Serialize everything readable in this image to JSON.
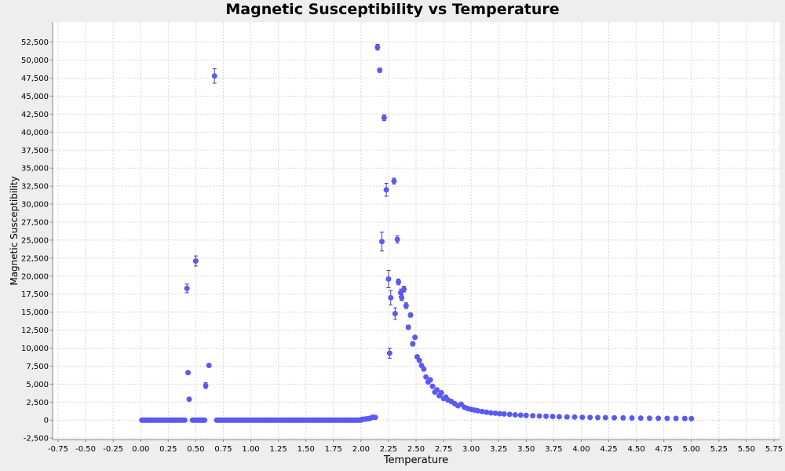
{
  "chart_data": {
    "type": "scatter",
    "title": "Magnetic Susceptibility vs Temperature",
    "xlabel": "Temperature",
    "ylabel": "Magnetic Susceptibility",
    "xlim": [
      -0.8,
      5.8
    ],
    "ylim": [
      -2700,
      55300
    ],
    "x_ticks": [
      -0.75,
      -0.5,
      -0.25,
      0,
      0.25,
      0.5,
      0.75,
      1,
      1.25,
      1.5,
      1.75,
      2,
      2.25,
      2.5,
      2.75,
      3,
      3.25,
      3.5,
      3.75,
      4,
      4.25,
      4.5,
      4.75,
      5,
      5.25,
      5.5,
      5.75
    ],
    "x_tick_labels": [
      "-0.75",
      "-0.50",
      "-0.25",
      "0.00",
      "0.25",
      "0.50",
      "0.75",
      "1.00",
      "1.25",
      "1.50",
      "1.75",
      "2.00",
      "2.25",
      "2.50",
      "2.75",
      "3.00",
      "3.25",
      "3.50",
      "3.75",
      "4.00",
      "4.25",
      "4.50",
      "4.75",
      "5.00",
      "5.25",
      "5.50",
      "5.75"
    ],
    "y_ticks": [
      -2500,
      0,
      2500,
      5000,
      7500,
      10000,
      12500,
      15000,
      17500,
      20000,
      22500,
      25000,
      27500,
      30000,
      32500,
      35000,
      37500,
      40000,
      42500,
      45000,
      47500,
      50000,
      52500
    ],
    "y_tick_labels": [
      "-2,500",
      "0",
      "2,500",
      "5,000",
      "7,500",
      "10,000",
      "12,500",
      "15,000",
      "17,500",
      "20,000",
      "22,500",
      "25,000",
      "27,500",
      "30,000",
      "32,500",
      "35,000",
      "37,500",
      "40,000",
      "42,500",
      "45,000",
      "47,500",
      "50,000",
      "52,500"
    ],
    "grid": true,
    "legend": "none",
    "colors": {
      "marker": "#5a5af2",
      "error_bar": "#4040a0",
      "plot_bg": "#ffffff",
      "page_bg": "#eeeeee",
      "grid": "#d8d8d8"
    },
    "series": [
      {
        "marker": "circle",
        "points": [
          {
            "x": 0.42,
            "y": 18300,
            "err": 600
          },
          {
            "x": 0.43,
            "y": 6600,
            "err": 200
          },
          {
            "x": 0.44,
            "y": 2900,
            "err": 100
          },
          {
            "x": 0.5,
            "y": 22100,
            "err": 700
          },
          {
            "x": 0.59,
            "y": 4800,
            "err": 400
          },
          {
            "x": 0.62,
            "y": 7600,
            "err": 150
          },
          {
            "x": 0.67,
            "y": 47800,
            "err": 1000
          },
          {
            "x": 2.01,
            "y": 120,
            "err": 0
          },
          {
            "x": 2.03,
            "y": 140,
            "err": 0
          },
          {
            "x": 2.05,
            "y": 180,
            "err": 0
          },
          {
            "x": 2.07,
            "y": 220,
            "err": 0
          },
          {
            "x": 2.09,
            "y": 300,
            "err": 0
          },
          {
            "x": 2.11,
            "y": 420,
            "err": 0
          },
          {
            "x": 2.13,
            "y": 380,
            "err": 0
          },
          {
            "x": 2.15,
            "y": 51800,
            "err": 400
          },
          {
            "x": 2.17,
            "y": 48600,
            "err": 300
          },
          {
            "x": 2.19,
            "y": 24800,
            "err": 1300
          },
          {
            "x": 2.21,
            "y": 42000,
            "err": 400
          },
          {
            "x": 2.23,
            "y": 32000,
            "err": 900
          },
          {
            "x": 2.25,
            "y": 19600,
            "err": 1200
          },
          {
            "x": 2.26,
            "y": 9300,
            "err": 700
          },
          {
            "x": 2.27,
            "y": 17000,
            "err": 1000
          },
          {
            "x": 2.3,
            "y": 33200,
            "err": 400
          },
          {
            "x": 2.31,
            "y": 14800,
            "err": 800
          },
          {
            "x": 2.33,
            "y": 25100,
            "err": 500
          },
          {
            "x": 2.34,
            "y": 19200,
            "err": 400
          },
          {
            "x": 2.36,
            "y": 17700,
            "err": 500
          },
          {
            "x": 2.37,
            "y": 17000,
            "err": 400
          },
          {
            "x": 2.39,
            "y": 18200,
            "err": 400
          },
          {
            "x": 2.41,
            "y": 15900,
            "err": 400
          },
          {
            "x": 2.43,
            "y": 12900,
            "err": 300
          },
          {
            "x": 2.45,
            "y": 14600,
            "err": 300
          },
          {
            "x": 2.47,
            "y": 10600,
            "err": 300
          },
          {
            "x": 2.49,
            "y": 11500,
            "err": 200
          },
          {
            "x": 2.51,
            "y": 8800,
            "err": 200
          },
          {
            "x": 2.53,
            "y": 8300,
            "err": 200
          },
          {
            "x": 2.55,
            "y": 7600,
            "err": 150
          },
          {
            "x": 2.57,
            "y": 7100,
            "err": 150
          },
          {
            "x": 2.59,
            "y": 6000,
            "err": 150
          },
          {
            "x": 2.61,
            "y": 5300,
            "err": 100
          },
          {
            "x": 2.63,
            "y": 5600,
            "err": 100
          },
          {
            "x": 2.65,
            "y": 4700,
            "err": 100
          },
          {
            "x": 2.67,
            "y": 3900,
            "err": 100
          },
          {
            "x": 2.69,
            "y": 4200,
            "err": 100
          },
          {
            "x": 2.71,
            "y": 3400,
            "err": 100
          },
          {
            "x": 2.73,
            "y": 3800,
            "err": 100
          },
          {
            "x": 2.75,
            "y": 3000,
            "err": 80
          },
          {
            "x": 2.77,
            "y": 3200,
            "err": 80
          },
          {
            "x": 2.79,
            "y": 2800,
            "err": 60
          },
          {
            "x": 2.82,
            "y": 2600,
            "err": 60
          },
          {
            "x": 2.85,
            "y": 2300,
            "err": 60
          },
          {
            "x": 2.88,
            "y": 2000,
            "err": 50
          },
          {
            "x": 2.91,
            "y": 2200,
            "err": 50
          },
          {
            "x": 2.94,
            "y": 1800,
            "err": 50
          },
          {
            "x": 2.97,
            "y": 1600,
            "err": 40
          },
          {
            "x": 3.0,
            "y": 1500,
            "err": 40
          },
          {
            "x": 3.03,
            "y": 1400,
            "err": 40
          },
          {
            "x": 3.06,
            "y": 1300,
            "err": 30
          },
          {
            "x": 3.1,
            "y": 1200,
            "err": 30
          },
          {
            "x": 3.14,
            "y": 1100,
            "err": 30
          },
          {
            "x": 3.18,
            "y": 1000,
            "err": 30
          },
          {
            "x": 3.22,
            "y": 960,
            "err": 20
          },
          {
            "x": 3.26,
            "y": 900,
            "err": 20
          },
          {
            "x": 3.3,
            "y": 860,
            "err": 20
          },
          {
            "x": 3.35,
            "y": 800,
            "err": 20
          },
          {
            "x": 3.4,
            "y": 740,
            "err": 20
          },
          {
            "x": 3.45,
            "y": 700,
            "err": 20
          },
          {
            "x": 3.5,
            "y": 650,
            "err": 20
          },
          {
            "x": 3.56,
            "y": 610,
            "err": 20
          },
          {
            "x": 3.62,
            "y": 570,
            "err": 20
          },
          {
            "x": 3.68,
            "y": 540,
            "err": 20
          },
          {
            "x": 3.74,
            "y": 510,
            "err": 20
          },
          {
            "x": 3.8,
            "y": 480,
            "err": 20
          },
          {
            "x": 3.87,
            "y": 450,
            "err": 20
          },
          {
            "x": 3.94,
            "y": 430,
            "err": 20
          },
          {
            "x": 4.01,
            "y": 400,
            "err": 20
          },
          {
            "x": 4.08,
            "y": 380,
            "err": 20
          },
          {
            "x": 4.15,
            "y": 360,
            "err": 20
          },
          {
            "x": 4.22,
            "y": 350,
            "err": 20
          },
          {
            "x": 4.3,
            "y": 330,
            "err": 20
          },
          {
            "x": 4.38,
            "y": 310,
            "err": 20
          },
          {
            "x": 4.46,
            "y": 300,
            "err": 20
          },
          {
            "x": 4.54,
            "y": 280,
            "err": 20
          },
          {
            "x": 4.62,
            "y": 270,
            "err": 20
          },
          {
            "x": 4.7,
            "y": 260,
            "err": 20
          },
          {
            "x": 4.78,
            "y": 250,
            "err": 20
          },
          {
            "x": 4.86,
            "y": 240,
            "err": 20
          },
          {
            "x": 4.94,
            "y": 230,
            "err": 20
          },
          {
            "x": 5.0,
            "y": 220,
            "err": 20
          }
        ],
        "baseline_segments": [
          {
            "x_start": 0.01,
            "x_end": 0.4,
            "step": 0.01,
            "y": 0
          },
          {
            "x_start": 0.47,
            "x_end": 0.58,
            "step": 0.01,
            "y": 0
          },
          {
            "x_start": 0.69,
            "x_end": 2.0,
            "step": 0.01,
            "y": 0
          }
        ]
      }
    ]
  }
}
